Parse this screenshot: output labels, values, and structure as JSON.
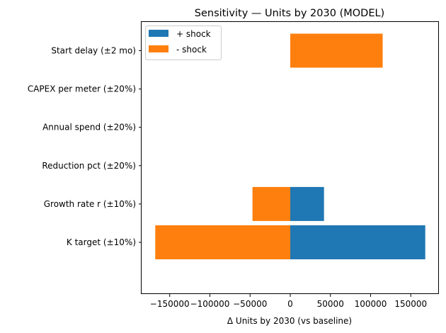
{
  "chart_data": {
    "type": "bar",
    "orientation": "horizontal",
    "title": "Sensitivity — Units by 2030 (MODEL)",
    "xlabel": "Δ Units by 2030 (vs baseline)",
    "ylabel": "",
    "categories": [
      "K target (±10%)",
      "Growth rate r (±10%)",
      "Reduction pct (±20%)",
      "Annual spend (±20%)",
      "CAPEX per meter (±20%)",
      "Start delay (±2 mo)"
    ],
    "series": [
      {
        "name": "+ shock",
        "color": "#1f77b4",
        "values": [
          168000,
          42000,
          0,
          0,
          0,
          0
        ]
      },
      {
        "name": "- shock",
        "color": "#ff7f0e",
        "values": [
          -168000,
          -47000,
          0,
          0,
          0,
          115000
        ]
      }
    ],
    "xlim": [
      -185000,
      185000
    ],
    "xticks": [
      -150000,
      -100000,
      -50000,
      0,
      50000,
      100000,
      150000
    ],
    "xtick_labels": [
      "−150000",
      "−100000",
      "−50000",
      "0",
      "50000",
      "100000",
      "150000"
    ],
    "grid": false,
    "legend_position": "top-left"
  }
}
